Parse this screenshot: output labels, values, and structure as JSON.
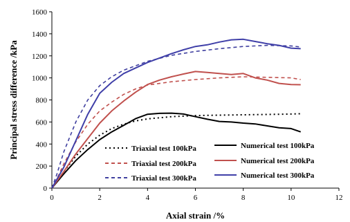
{
  "chart_data": {
    "type": "line",
    "xlabel": "Axial strain /%",
    "ylabel": "Principal stress difference /kPa",
    "xlim": [
      0,
      12
    ],
    "ylim": [
      0,
      1600
    ],
    "x_ticks": [
      0,
      2,
      4,
      6,
      8,
      10,
      12
    ],
    "y_ticks": [
      0,
      200,
      400,
      600,
      800,
      1000,
      1200,
      1400,
      1600
    ],
    "grid": false,
    "legend": "bottom-right",
    "series": [
      {
        "name": "Triaxial test 100kPa",
        "style": "dotted",
        "color": "#000000",
        "points": [
          [
            0,
            0
          ],
          [
            0.2,
            60
          ],
          [
            0.5,
            150
          ],
          [
            1.0,
            290
          ],
          [
            1.5,
            400
          ],
          [
            2.0,
            480
          ],
          [
            2.5,
            540
          ],
          [
            3.0,
            580
          ],
          [
            3.5,
            610
          ],
          [
            4.0,
            628
          ],
          [
            5.0,
            648
          ],
          [
            6.0,
            658
          ],
          [
            7.0,
            662
          ],
          [
            8.0,
            665
          ],
          [
            9.0,
            668
          ],
          [
            10.0,
            672
          ],
          [
            10.4,
            675
          ]
        ]
      },
      {
        "name": "Triaxial test 200kPa",
        "style": "dashed",
        "color": "#c0504d",
        "points": [
          [
            0,
            0
          ],
          [
            0.2,
            80
          ],
          [
            0.5,
            220
          ],
          [
            1.0,
            420
          ],
          [
            1.5,
            580
          ],
          [
            2.0,
            700
          ],
          [
            2.5,
            780
          ],
          [
            3.0,
            850
          ],
          [
            3.5,
            900
          ],
          [
            4.0,
            935
          ],
          [
            5.0,
            965
          ],
          [
            6.0,
            985
          ],
          [
            7.0,
            1000
          ],
          [
            8.0,
            1010
          ],
          [
            9.0,
            1005
          ],
          [
            10.0,
            1000
          ],
          [
            10.4,
            985
          ]
        ]
      },
      {
        "name": "Triaxial test 300kPa",
        "style": "dashed",
        "color": "#3f3f9f",
        "points": [
          [
            0,
            0
          ],
          [
            0.2,
            120
          ],
          [
            0.5,
            330
          ],
          [
            1.0,
            600
          ],
          [
            1.5,
            800
          ],
          [
            2.0,
            930
          ],
          [
            2.5,
            1010
          ],
          [
            3.0,
            1070
          ],
          [
            3.5,
            1110
          ],
          [
            4.0,
            1150
          ],
          [
            5.0,
            1205
          ],
          [
            6.0,
            1240
          ],
          [
            7.0,
            1265
          ],
          [
            8.0,
            1285
          ],
          [
            9.0,
            1295
          ],
          [
            10.0,
            1290
          ],
          [
            10.4,
            1280
          ]
        ]
      },
      {
        "name": "Numerical test  100kPa",
        "style": "solid",
        "color": "#000000",
        "points": [
          [
            0,
            0
          ],
          [
            0.5,
            130
          ],
          [
            1.0,
            250
          ],
          [
            1.5,
            350
          ],
          [
            2.0,
            440
          ],
          [
            2.5,
            510
          ],
          [
            3.0,
            570
          ],
          [
            3.5,
            630
          ],
          [
            4.0,
            670
          ],
          [
            4.5,
            678
          ],
          [
            5.0,
            680
          ],
          [
            5.5,
            672
          ],
          [
            6.0,
            648
          ],
          [
            6.5,
            625
          ],
          [
            7.0,
            605
          ],
          [
            7.5,
            600
          ],
          [
            8.0,
            590
          ],
          [
            8.5,
            582
          ],
          [
            9.0,
            565
          ],
          [
            9.5,
            548
          ],
          [
            10.0,
            540
          ],
          [
            10.4,
            510
          ]
        ]
      },
      {
        "name": "Numerical test 200kPa",
        "style": "solid",
        "color": "#c0504d",
        "points": [
          [
            0,
            0
          ],
          [
            0.5,
            150
          ],
          [
            1.0,
            310
          ],
          [
            1.5,
            450
          ],
          [
            2.0,
            590
          ],
          [
            2.5,
            700
          ],
          [
            3.0,
            790
          ],
          [
            3.5,
            870
          ],
          [
            4.0,
            940
          ],
          [
            4.5,
            980
          ],
          [
            5.0,
            1010
          ],
          [
            5.5,
            1035
          ],
          [
            6.0,
            1058
          ],
          [
            6.5,
            1050
          ],
          [
            7.0,
            1040
          ],
          [
            7.5,
            1030
          ],
          [
            8.0,
            1040
          ],
          [
            8.5,
            1000
          ],
          [
            9.0,
            980
          ],
          [
            9.5,
            950
          ],
          [
            10.0,
            940
          ],
          [
            10.4,
            938
          ]
        ]
      },
      {
        "name": "Numerical test  300kPa",
        "style": "solid",
        "color": "#3f3fa8",
        "points": [
          [
            0,
            0
          ],
          [
            0.5,
            190
          ],
          [
            1.0,
            430
          ],
          [
            1.5,
            670
          ],
          [
            2.0,
            860
          ],
          [
            2.5,
            960
          ],
          [
            3.0,
            1040
          ],
          [
            3.5,
            1090
          ],
          [
            4.0,
            1140
          ],
          [
            4.5,
            1180
          ],
          [
            5.0,
            1220
          ],
          [
            5.5,
            1255
          ],
          [
            6.0,
            1285
          ],
          [
            6.5,
            1300
          ],
          [
            7.0,
            1325
          ],
          [
            7.5,
            1345
          ],
          [
            8.0,
            1350
          ],
          [
            8.5,
            1330
          ],
          [
            9.0,
            1310
          ],
          [
            9.5,
            1295
          ],
          [
            10.0,
            1270
          ],
          [
            10.4,
            1265
          ]
        ]
      }
    ]
  }
}
